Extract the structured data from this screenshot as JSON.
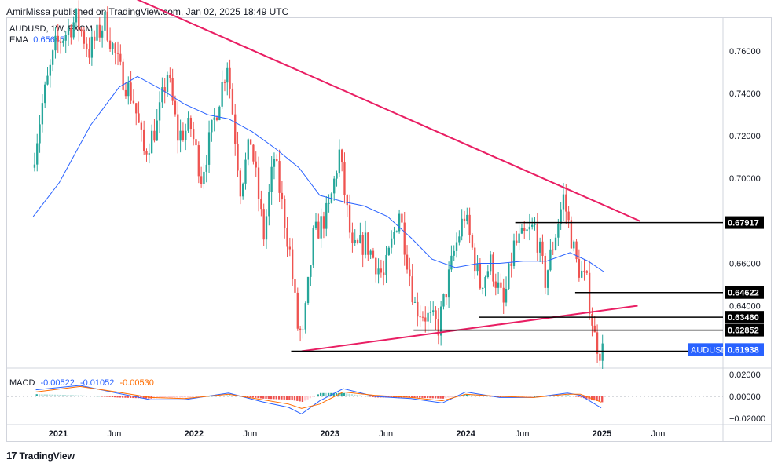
{
  "header": {
    "byline": "AmirMissa published on TradingView.com, Jan 02, 2025 18:49 UTC"
  },
  "legend": {
    "symbol": "AUDUSD, 1W, FXCM",
    "ema_label": "EMA",
    "ema_value": "0.65645",
    "macd_label": "MACD",
    "macd_values": [
      "-0.00522",
      "-0.01052",
      "-0.00530"
    ]
  },
  "footer": {
    "brand": "TradingView",
    "logo_glyph": "17"
  },
  "colors": {
    "up": "#26a69a",
    "down": "#ef5350",
    "ema": "#2962ff",
    "trendline": "#e91e63",
    "level": "#000000",
    "macd": "#2962ff",
    "signal": "#ff6d00",
    "price_tag": "#2962ff"
  },
  "chart_data": [
    {
      "type": "candlestick",
      "title": "AUDUSD, 1W, FXCM",
      "x_ticks": [
        "2021",
        "Jun",
        "2022",
        "Jun",
        "2023",
        "Jun",
        "2024",
        "Jun",
        "2025",
        "Jun"
      ],
      "x_tick_dates": [
        "2021-01-01",
        "2021-06-01",
        "2022-01-01",
        "2022-06-01",
        "2023-01-01",
        "2023-06-01",
        "2024-01-01",
        "2024-06-01",
        "2025-01-01",
        "2025-06-01"
      ],
      "y_ticks": [
        "0.76000",
        "0.74000",
        "0.72000",
        "0.70000",
        "0.66000",
        "0.64000"
      ],
      "ylim": [
        0.611,
        0.7755
      ],
      "current_price": {
        "label": "AUDUSD",
        "value": "0.61938"
      },
      "price_path": [
        [
          "2020-10-26",
          0.705
        ],
        [
          "2020-11-23",
          0.735
        ],
        [
          "2020-12-28",
          0.762
        ],
        [
          "2021-02-22",
          0.775
        ],
        [
          "2021-03-29",
          0.76
        ],
        [
          "2021-05-10",
          0.774
        ],
        [
          "2021-06-21",
          0.75
        ],
        [
          "2021-07-26",
          0.737
        ],
        [
          "2021-08-23",
          0.712
        ],
        [
          "2021-09-27",
          0.725
        ],
        [
          "2021-10-25",
          0.75
        ],
        [
          "2021-11-22",
          0.72
        ],
        [
          "2021-12-27",
          0.724
        ],
        [
          "2022-01-24",
          0.701
        ],
        [
          "2022-02-21",
          0.722
        ],
        [
          "2022-04-04",
          0.755
        ],
        [
          "2022-05-09",
          0.696
        ],
        [
          "2022-06-06",
          0.718
        ],
        [
          "2022-07-11",
          0.673
        ],
        [
          "2022-08-08",
          0.71
        ],
        [
          "2022-09-19",
          0.665
        ],
        [
          "2022-10-10",
          0.63
        ],
        [
          "2022-10-24",
          0.625
        ],
        [
          "2022-11-21",
          0.672
        ],
        [
          "2023-01-02",
          0.685
        ],
        [
          "2023-01-30",
          0.712
        ],
        [
          "2023-03-06",
          0.665
        ],
        [
          "2023-04-10",
          0.67
        ],
        [
          "2023-05-29",
          0.653
        ],
        [
          "2023-07-10",
          0.685
        ],
        [
          "2023-08-21",
          0.64
        ],
        [
          "2023-10-23",
          0.63
        ],
        [
          "2023-12-04",
          0.665
        ],
        [
          "2024-01-01",
          0.683
        ],
        [
          "2024-02-12",
          0.65
        ],
        [
          "2024-03-11",
          0.66
        ],
        [
          "2024-04-15",
          0.64
        ],
        [
          "2024-05-13",
          0.668
        ],
        [
          "2024-07-08",
          0.677
        ],
        [
          "2024-08-05",
          0.652
        ],
        [
          "2024-09-23",
          0.691
        ],
        [
          "2024-10-28",
          0.66
        ],
        [
          "2024-11-25",
          0.65
        ],
        [
          "2024-12-16",
          0.625
        ],
        [
          "2024-12-30",
          0.619
        ]
      ],
      "ema_path": [
        [
          "2020-10-26",
          0.682
        ],
        [
          "2021-01-04",
          0.698
        ],
        [
          "2021-03-29",
          0.725
        ],
        [
          "2021-06-14",
          0.743
        ],
        [
          "2021-08-02",
          0.748
        ],
        [
          "2021-10-04",
          0.742
        ],
        [
          "2021-12-06",
          0.735
        ],
        [
          "2022-02-07",
          0.73
        ],
        [
          "2022-04-04",
          0.728
        ],
        [
          "2022-06-06",
          0.722
        ],
        [
          "2022-08-08",
          0.714
        ],
        [
          "2022-10-10",
          0.705
        ],
        [
          "2022-12-05",
          0.692
        ],
        [
          "2023-02-06",
          0.689
        ],
        [
          "2023-04-03",
          0.687
        ],
        [
          "2023-06-05",
          0.682
        ],
        [
          "2023-08-07",
          0.672
        ],
        [
          "2023-10-02",
          0.662
        ],
        [
          "2023-12-04",
          0.658
        ],
        [
          "2024-02-05",
          0.66
        ],
        [
          "2024-04-01",
          0.66
        ],
        [
          "2024-06-03",
          0.661
        ],
        [
          "2024-08-05",
          0.661
        ],
        [
          "2024-10-07",
          0.665
        ],
        [
          "2024-11-25",
          0.661
        ],
        [
          "2025-01-06",
          0.656
        ]
      ],
      "trendlines": [
        {
          "name": "descending",
          "from": [
            "2021-06-01",
            0.789
          ],
          "to": [
            "2025-04-14",
            0.6798
          ]
        },
        {
          "name": "ascending",
          "from": [
            "2022-10-17",
            0.6186
          ],
          "to": [
            "2025-04-07",
            0.64
          ]
        }
      ],
      "levels": [
        {
          "label": "0.67917",
          "value": 0.67917,
          "from": "2024-05-13"
        },
        {
          "label": "0.64622",
          "value": 0.64622,
          "from": "2024-10-21"
        },
        {
          "label": "0.63460",
          "value": 0.6346,
          "from": "2024-02-05"
        },
        {
          "label": "0.62852",
          "value": 0.62852,
          "from": "2023-08-14"
        },
        {
          "label": "",
          "value": 0.6186,
          "from": "2022-09-19"
        }
      ]
    },
    {
      "type": "line",
      "title": "MACD",
      "y_ticks": [
        "0.02000",
        "0.00000",
        "−0.02000"
      ],
      "ylim": [
        -0.025,
        0.025
      ],
      "series": [
        {
          "name": "MACD",
          "points": [
            [
              "2020-11-02",
              0.006
            ],
            [
              "2021-03-01",
              0.01
            ],
            [
              "2021-06-07",
              0.003
            ],
            [
              "2021-09-06",
              -0.003
            ],
            [
              "2021-12-06",
              -0.003
            ],
            [
              "2022-04-04",
              0.003
            ],
            [
              "2022-07-04",
              -0.005
            ],
            [
              "2022-09-12",
              -0.01
            ],
            [
              "2022-10-17",
              -0.016
            ],
            [
              "2022-12-05",
              -0.004
            ],
            [
              "2023-02-06",
              0.007
            ],
            [
              "2023-05-01",
              0.0
            ],
            [
              "2023-08-07",
              -0.002
            ],
            [
              "2023-10-30",
              -0.006
            ],
            [
              "2024-01-01",
              0.004
            ],
            [
              "2024-04-01",
              -0.001
            ],
            [
              "2024-07-01",
              -0.001
            ],
            [
              "2024-09-30",
              0.003
            ],
            [
              "2024-11-04",
              0.001
            ],
            [
              "2024-12-30",
              -0.0105
            ]
          ]
        },
        {
          "name": "Signal",
          "points": [
            [
              "2020-11-02",
              0.004
            ],
            [
              "2021-03-01",
              0.009
            ],
            [
              "2021-06-07",
              0.004
            ],
            [
              "2021-09-06",
              -0.001
            ],
            [
              "2021-12-06",
              -0.002
            ],
            [
              "2022-04-04",
              0.002
            ],
            [
              "2022-07-04",
              -0.003
            ],
            [
              "2022-09-12",
              -0.007
            ],
            [
              "2022-10-17",
              -0.011
            ],
            [
              "2022-12-05",
              -0.007
            ],
            [
              "2023-02-06",
              0.004
            ],
            [
              "2023-05-01",
              0.001
            ],
            [
              "2023-08-07",
              -0.001
            ],
            [
              "2023-10-30",
              -0.004
            ],
            [
              "2024-01-01",
              0.002
            ],
            [
              "2024-04-01",
              0.0
            ],
            [
              "2024-07-01",
              -0.001
            ],
            [
              "2024-09-30",
              0.002
            ],
            [
              "2024-11-04",
              0.002
            ],
            [
              "2024-12-30",
              -0.0052
            ]
          ]
        }
      ]
    }
  ]
}
